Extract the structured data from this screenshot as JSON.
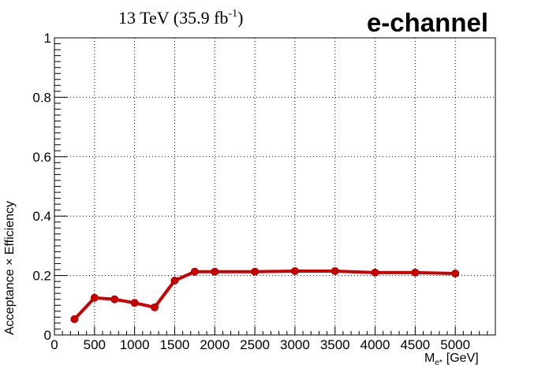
{
  "chart_data": {
    "type": "line",
    "title": "13 TeV (35.9 fb",
    "title_superscript": "-1",
    "title_close": ")",
    "label": "e-channel",
    "xlabel": "M",
    "xlabel_sub": "e*",
    "xlabel_unit": "[GeV]",
    "ylabel": "Acceptance × Efficiency",
    "xlim": [
      0,
      5500
    ],
    "ylim": [
      0,
      1
    ],
    "x_ticks": [
      0,
      500,
      1000,
      1500,
      2000,
      2500,
      3000,
      3500,
      4000,
      4500,
      5000
    ],
    "y_ticks": [
      0,
      0.2,
      0.4,
      0.6,
      0.8,
      1
    ],
    "y_tick_labels": [
      "0",
      "0.2",
      "0.4",
      "0.6",
      "0.8",
      "1"
    ],
    "grid": true,
    "series": [
      {
        "color": "#cc0000",
        "x": [
          250,
          500,
          750,
          1000,
          1250,
          1500,
          1750,
          2000,
          2500,
          3000,
          3500,
          4000,
          4500,
          5000
        ],
        "y": [
          0.053,
          0.125,
          0.12,
          0.108,
          0.093,
          0.183,
          0.213,
          0.213,
          0.213,
          0.215,
          0.215,
          0.21,
          0.21,
          0.207
        ]
      }
    ]
  }
}
